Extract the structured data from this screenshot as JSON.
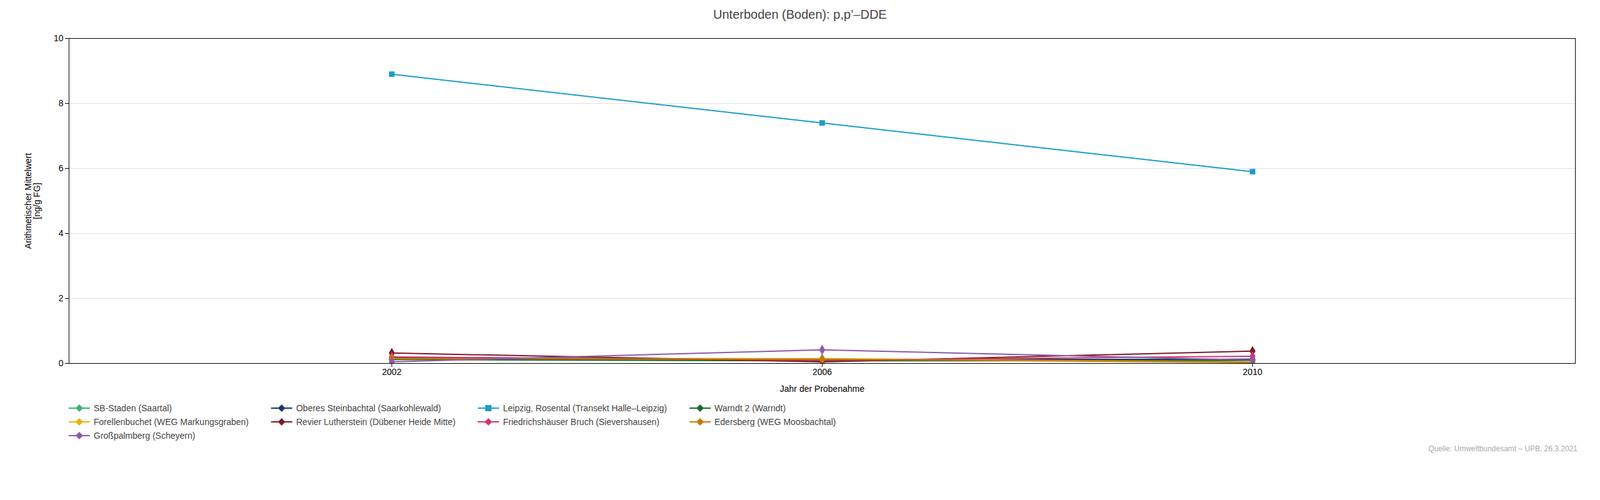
{
  "chart_data": {
    "type": "line",
    "title": "Unterboden (Boden): p,p’–DDE",
    "xlabel": "Jahr der Probenahme",
    "ylabel": "Arithmetischer Mittelwert\n[ng/g FG]",
    "x": [
      2002,
      2006,
      2010
    ],
    "xlim": [
      1999,
      2013
    ],
    "xticks": [
      2002,
      2006,
      2010
    ],
    "ylim": [
      0,
      10
    ],
    "yticks": [
      0,
      2,
      4,
      6,
      8,
      10
    ],
    "grid": true,
    "legend": "bottom",
    "annotations": [
      "Quelle: Umweltbundesamt – UPB, 26.3.2021"
    ],
    "series": [
      {
        "name": "SB-Staden (Saartal)",
        "color": "#3cb371",
        "marker": "diamond",
        "values": [
          0.13,
          0.1,
          0.1
        ]
      },
      {
        "name": "Oberes Steinbachtal (Saarkohlewald)",
        "color": "#1a3a6b",
        "marker": "diamond",
        "values": [
          0.18,
          0.12,
          0.13
        ]
      },
      {
        "name": "Leipzig, Rosental (Transekt Halle–Leipzig)",
        "color": "#1e9dc8",
        "marker": "square",
        "values": [
          8.9,
          7.4,
          5.9
        ]
      },
      {
        "name": "Warndt 2 (Warndt)",
        "color": "#1a6b2a",
        "marker": "diamond",
        "values": [
          0.12,
          0.08,
          0.09
        ]
      },
      {
        "name": "Forellenbuchet (WEG Markungsgraben)",
        "color": "#e8b400",
        "marker": "diamond",
        "values": [
          0.15,
          0.15,
          0.04
        ]
      },
      {
        "name": "Revier Lutherstein (Dübener Heide Mitte)",
        "color": "#7b1a2a",
        "marker": "diamond",
        "values": [
          0.32,
          0.05,
          0.38
        ]
      },
      {
        "name": "Friedrichshäuser Bruch (Sievershausen)",
        "color": "#d4336e",
        "marker": "diamond",
        "values": [
          0.2,
          0.1,
          0.22
        ]
      },
      {
        "name": "Edersberg (WEG Moosbachtal)",
        "color": "#c87800",
        "marker": "diamond",
        "values": [
          0.15,
          0.13,
          0.03
        ]
      },
      {
        "name": "Großpalmberg (Scheyern)",
        "color": "#8b5aab",
        "marker": "diamond",
        "values": [
          0.05,
          0.42,
          0.1
        ]
      }
    ]
  }
}
